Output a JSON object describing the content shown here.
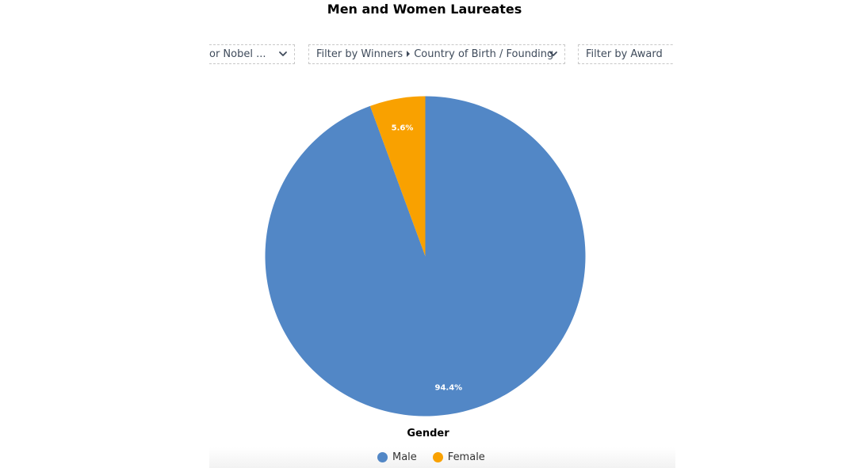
{
  "filters": [
    {
      "label": "or Nobel ...",
      "has_chevron": true,
      "icon": "chevron-down-icon"
    },
    {
      "label_part1": "Filter by Winners",
      "label_part2": "Country of Birth / Founding",
      "has_chevron": true,
      "icon": "chevron-down-icon",
      "separator_icon": "caret-right-icon"
    },
    {
      "label": "Filter by Award",
      "has_chevron": false
    }
  ],
  "colors": {
    "male": "#5287c6",
    "female": "#f9a100",
    "filter_text": "#3f4b5b"
  },
  "chart_data": {
    "type": "pie",
    "title": "Men and Women Laureates",
    "xlabel": "Gender",
    "categories": [
      "Male",
      "Female"
    ],
    "values": [
      94.4,
      5.6
    ],
    "labels": [
      "94.4%",
      "5.6%"
    ],
    "legend_position": "bottom",
    "start_angle": "12 o'clock",
    "direction": "clockwise"
  }
}
